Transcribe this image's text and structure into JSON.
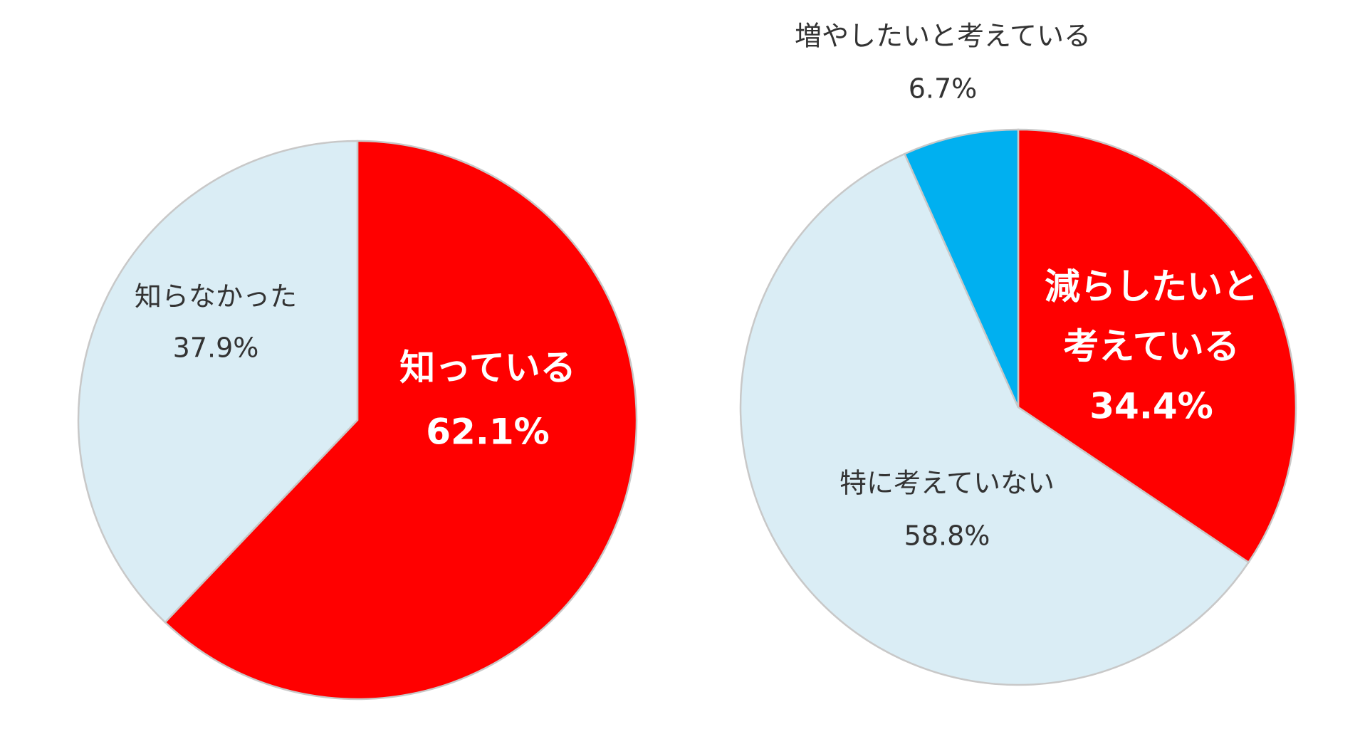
{
  "chart_data": [
    {
      "type": "pie",
      "slices": [
        {
          "label": "知っている",
          "value": 62.1,
          "value_text": "62.1%",
          "color": "#ff0000",
          "label_color": "#ffffff"
        },
        {
          "label": "知らなかった",
          "value": 37.9,
          "value_text": "37.9%",
          "color": "#daedf5",
          "label_color": "#333333"
        }
      ],
      "start": "12 o'clock",
      "direction": "clockwise"
    },
    {
      "type": "pie",
      "slices": [
        {
          "label": "減らしたいと考えている",
          "label_lines": [
            "減らしたいと",
            "考えている"
          ],
          "value": 34.4,
          "value_text": "34.4%",
          "color": "#ff0000",
          "label_color": "#ffffff"
        },
        {
          "label": "特に考えていない",
          "value": 58.8,
          "value_text": "58.8%",
          "color": "#daedf5",
          "label_color": "#333333"
        },
        {
          "label": "増やしたいと考えている",
          "value": 6.7,
          "value_text": "6.7%",
          "color": "#00b0f0",
          "label_color": "#333333"
        }
      ],
      "start": "12 o'clock",
      "direction": "clockwise"
    }
  ]
}
